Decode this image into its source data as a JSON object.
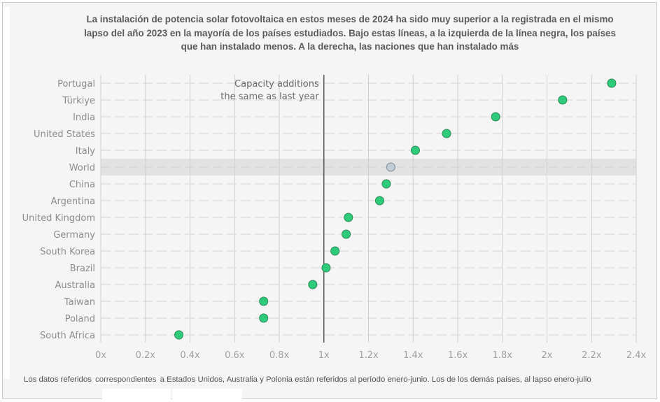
{
  "title": "La instalación de potencia solar fotovoltaica en estos meses de 2024 ha sido muy superior a la registrada en el mismo lapso del año 2023 en la mayoría de los países estudiados. Bajo estas líneas, a la izquierda de la línea negra, los países que han instalado menos. A la derecha, las naciones que han instalado más",
  "footnote": {
    "part1": "Los datos referidos",
    "highlight": "correspondientes",
    "part2": "a Estados Unidos, Australia y Polonia están referidos al período enero-junio. Los de los demás países, al lapso enero-julio"
  },
  "colors": {
    "point": "#2ecc7a",
    "point_stroke": "#2a8a56",
    "highlight_point": "#c0ccd6",
    "highlight_stroke": "#7f8c96",
    "highlight_band": "#e2e2e2",
    "reference_line": "#555555",
    "grid": "#cfcfcf"
  },
  "chart_data": {
    "type": "scatter",
    "title": "",
    "xlabel": "",
    "ylabel": "",
    "xlim": [
      0,
      2.4
    ],
    "x_ticks": [
      0,
      0.2,
      0.4,
      0.6,
      0.8,
      1,
      1.2,
      1.4,
      1.6,
      1.8,
      2,
      2.2,
      2.4
    ],
    "x_tick_labels": [
      "0x",
      "0.2x",
      "0.4x",
      "0.6x",
      "0.8x",
      "1x",
      "1.2x",
      "1.4x",
      "1.6x",
      "1.8x",
      "2x",
      "2.2x",
      "2.4x"
    ],
    "grid": true,
    "categories": [
      "Portugal",
      "Türkiye",
      "India",
      "United States",
      "Italy",
      "World",
      "China",
      "Argentina",
      "United Kingdom",
      "Germany",
      "South Korea",
      "Brazil",
      "Australia",
      "Taiwan",
      "Poland",
      "South Africa"
    ],
    "values": [
      2.29,
      2.07,
      1.77,
      1.55,
      1.41,
      1.3,
      1.28,
      1.25,
      1.11,
      1.1,
      1.05,
      1.01,
      0.95,
      0.73,
      0.73,
      0.35
    ],
    "highlighted_category": "World",
    "reference_line": {
      "x": 1,
      "label_line1": "Capacity additions",
      "label_line2": "the same as last year"
    }
  }
}
